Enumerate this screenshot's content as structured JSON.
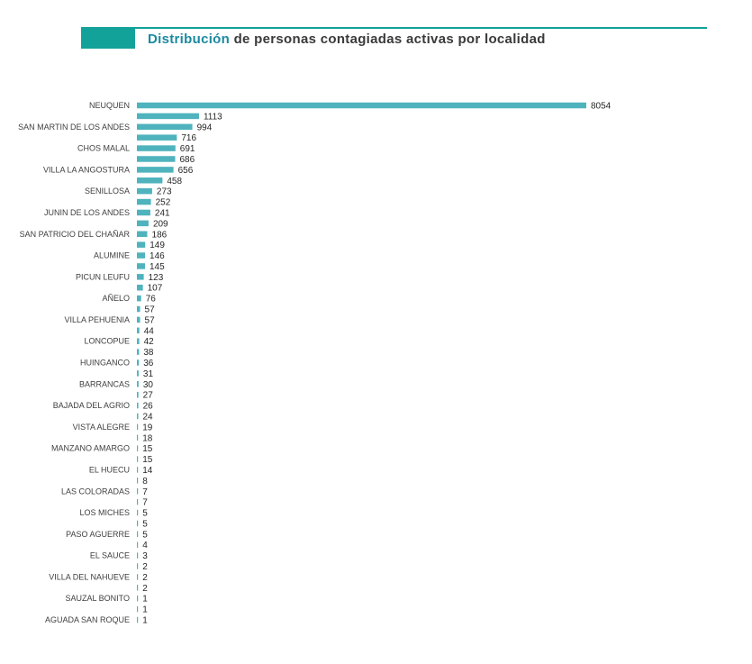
{
  "header": {
    "title_accent": "Distribución",
    "title_rest": " de personas contagiadas activas por localidad",
    "accent_color": "#13a29a"
  },
  "chart_data": {
    "type": "bar",
    "orientation": "horizontal",
    "bar_color": "#4fb3bd",
    "categories": [
      "NEUQUEN",
      "",
      "SAN MARTIN DE LOS ANDES",
      "",
      "CHOS MALAL",
      "",
      "VILLA LA ANGOSTURA",
      "",
      "SENILLOSA",
      "",
      "JUNIN DE LOS ANDES",
      "",
      "SAN PATRICIO DEL CHAÑAR",
      "",
      "ALUMINE",
      "",
      "PICUN LEUFU",
      "",
      "AÑELO",
      "",
      "VILLA PEHUENIA",
      "",
      "LONCOPUE",
      "",
      "HUINGANCO",
      "",
      "BARRANCAS",
      "",
      "BAJADA DEL AGRIO",
      "",
      "VISTA ALEGRE",
      "",
      "MANZANO AMARGO",
      "",
      "EL HUECU",
      "",
      "LAS COLORADAS",
      "",
      "LOS MICHES",
      "",
      "PASO AGUERRE",
      "",
      "EL SAUCE",
      "",
      "VILLA DEL NAHUEVE",
      "",
      "SAUZAL BONITO",
      "",
      "AGUADA SAN ROQUE"
    ],
    "values": [
      8054,
      1113,
      994,
      716,
      691,
      686,
      656,
      458,
      273,
      252,
      241,
      209,
      186,
      149,
      146,
      145,
      123,
      107,
      76,
      57,
      57,
      44,
      42,
      38,
      36,
      31,
      30,
      27,
      26,
      24,
      19,
      18,
      15,
      15,
      14,
      8,
      7,
      7,
      5,
      5,
      5,
      4,
      3,
      2,
      2,
      2,
      1,
      1,
      1
    ]
  }
}
